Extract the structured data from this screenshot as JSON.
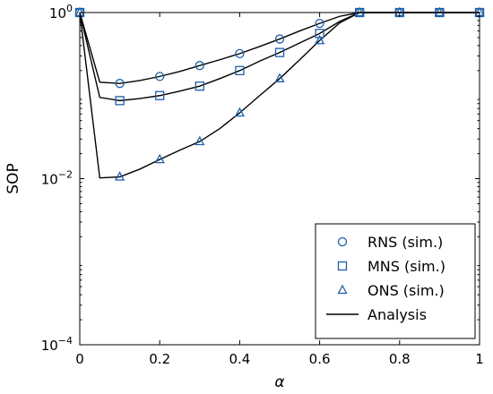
{
  "chart_data": {
    "type": "line",
    "xlabel": "α",
    "ylabel": "SOP",
    "xlim": [
      0,
      1
    ],
    "ylim": [
      0.0001,
      1
    ],
    "yscale": "log",
    "grid": false,
    "legend_position": "bottom-right",
    "x_ticks": [
      {
        "value": 0,
        "label": "0"
      },
      {
        "value": 0.2,
        "label": "0.2"
      },
      {
        "value": 0.4,
        "label": "0.4"
      },
      {
        "value": 0.6,
        "label": "0.6"
      },
      {
        "value": 0.8,
        "label": "0.8"
      },
      {
        "value": 1,
        "label": "1"
      }
    ],
    "y_ticks": [
      {
        "value": 1,
        "base": "10",
        "exp": "0"
      },
      {
        "value": 0.01,
        "base": "10",
        "exp": "−2"
      },
      {
        "value": 0.0001,
        "base": "10",
        "exp": "−4"
      }
    ],
    "colors": {
      "sim": "#1f5ea8",
      "analysis": "#000000"
    },
    "series": [
      {
        "name": "RNS (sim.)",
        "kind": "sim",
        "marker": "circle",
        "x": [
          0,
          0.1,
          0.2,
          0.3,
          0.4,
          0.5,
          0.6,
          0.7,
          0.8,
          0.9,
          1.0
        ],
        "y": [
          1,
          0.14,
          0.17,
          0.23,
          0.32,
          0.48,
          0.74,
          1,
          1,
          1,
          1
        ]
      },
      {
        "name": "MNS (sim.)",
        "kind": "sim",
        "marker": "square",
        "x": [
          0,
          0.1,
          0.2,
          0.3,
          0.4,
          0.5,
          0.6,
          0.7,
          0.8,
          0.9,
          1.0
        ],
        "y": [
          1,
          0.087,
          0.1,
          0.13,
          0.2,
          0.33,
          0.56,
          1,
          1,
          1,
          1
        ]
      },
      {
        "name": "ONS (sim.)",
        "kind": "sim",
        "marker": "triangle",
        "x": [
          0,
          0.1,
          0.2,
          0.3,
          0.4,
          0.5,
          0.6,
          0.7,
          0.8,
          0.9,
          1.0
        ],
        "y": [
          1,
          0.0105,
          0.017,
          0.028,
          0.062,
          0.16,
          0.46,
          1,
          1,
          1,
          1
        ]
      },
      {
        "name": "Analysis",
        "kind": "analysis",
        "marker": "none",
        "curves": [
          {
            "x": [
              0,
              0.05,
              0.1,
              0.15,
              0.2,
              0.25,
              0.3,
              0.35,
              0.4,
              0.45,
              0.5,
              0.55,
              0.6,
              0.65,
              0.7,
              0.75,
              0.8,
              0.85,
              0.9,
              0.95,
              1.0
            ],
            "y": [
              1,
              0.145,
              0.14,
              0.152,
              0.17,
              0.195,
              0.23,
              0.27,
              0.32,
              0.39,
              0.48,
              0.6,
              0.74,
              0.9,
              1,
              1,
              1,
              1,
              1,
              1,
              1
            ]
          },
          {
            "x": [
              0,
              0.05,
              0.1,
              0.15,
              0.2,
              0.25,
              0.3,
              0.35,
              0.4,
              0.45,
              0.5,
              0.55,
              0.6,
              0.65,
              0.7,
              0.75,
              0.8,
              0.85,
              0.9,
              0.95,
              1.0
            ],
            "y": [
              1,
              0.095,
              0.087,
              0.092,
              0.1,
              0.113,
              0.13,
              0.16,
              0.2,
              0.26,
              0.33,
              0.43,
              0.56,
              0.78,
              1,
              1,
              1,
              1,
              1,
              1,
              1
            ]
          },
          {
            "x": [
              0,
              0.05,
              0.1,
              0.15,
              0.2,
              0.25,
              0.3,
              0.35,
              0.4,
              0.45,
              0.5,
              0.55,
              0.6,
              0.65,
              0.7,
              0.75,
              0.8,
              0.85,
              0.9,
              0.95,
              1.0
            ],
            "y": [
              1,
              0.0102,
              0.0105,
              0.013,
              0.017,
              0.022,
              0.028,
              0.04,
              0.062,
              0.1,
              0.16,
              0.27,
              0.46,
              0.75,
              1,
              1,
              1,
              1,
              1,
              1,
              1
            ]
          }
        ]
      }
    ]
  }
}
